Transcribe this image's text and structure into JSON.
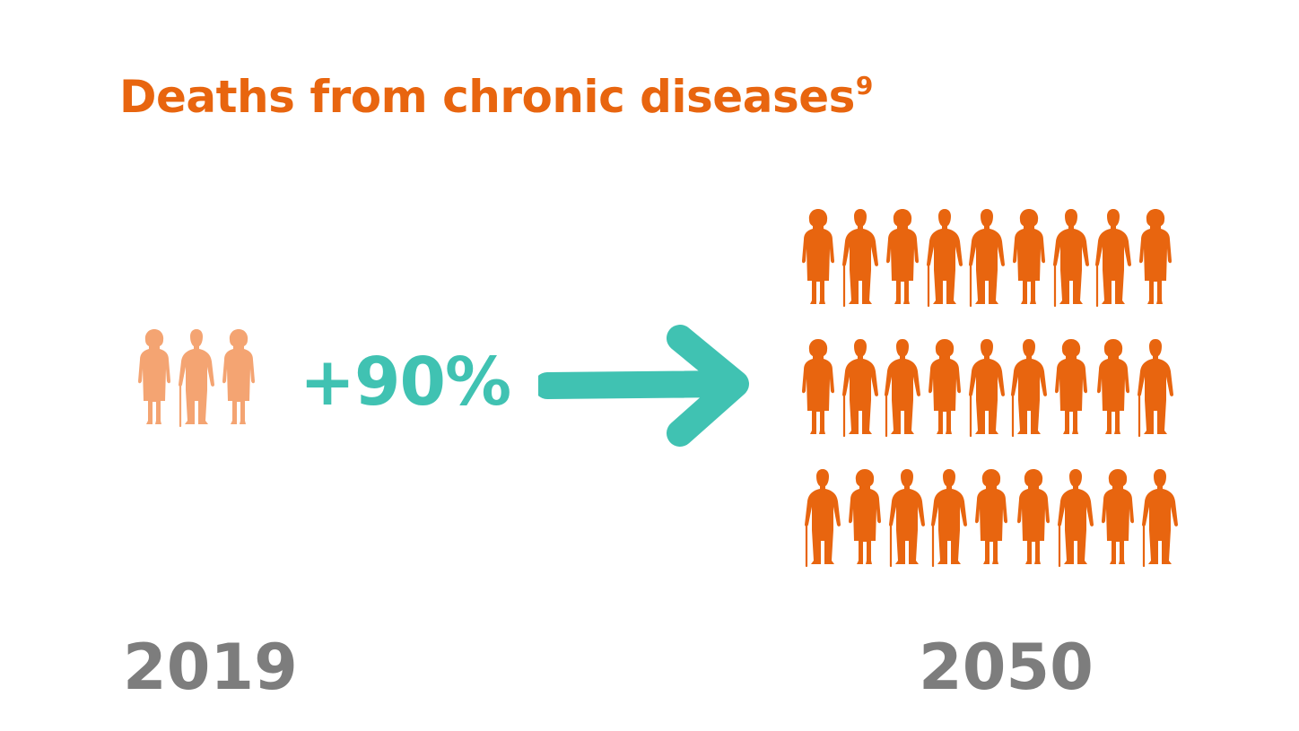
{
  "title": {
    "text": "Deaths from chronic diseases",
    "footnote": "9"
  },
  "change": {
    "text": "+90%"
  },
  "years": {
    "start": "2019",
    "end": "2050"
  },
  "figures": {
    "start_count": 3,
    "end_count": 27,
    "end_rows": 3,
    "end_per_row": 9
  },
  "colors": {
    "title": "#e8650f",
    "figure_start": "#f4a472",
    "figure_end": "#e8650f",
    "accent": "#40c2b2",
    "year": "#7d7d7d"
  },
  "icons": {
    "figure": "elderly-person-icon",
    "arrow": "arrow-right-icon"
  }
}
